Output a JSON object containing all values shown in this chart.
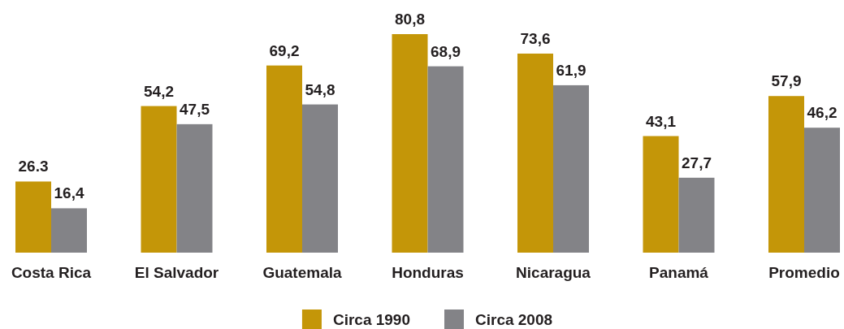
{
  "chart_data": {
    "type": "bar",
    "categories": [
      "Costa Rica",
      "El Salvador",
      "Guatemala",
      "Honduras",
      "Nicaragua",
      "Panamá",
      "Promedio"
    ],
    "series": [
      {
        "name": "Circa 1990",
        "color": "#c49608",
        "values": [
          26.3,
          54.2,
          69.2,
          80.8,
          73.6,
          43.1,
          57.9
        ],
        "value_labels": [
          "26.3",
          "54,2",
          "69,2",
          "80,8",
          "73,6",
          "43,1",
          "57,9"
        ]
      },
      {
        "name": "Circa 2008",
        "color": "#838387",
        "values": [
          16.4,
          47.5,
          54.8,
          68.9,
          61.9,
          27.7,
          46.2
        ],
        "value_labels": [
          "16,4",
          "47,5",
          "54,8",
          "68,9",
          "61,9",
          "27,7",
          "46,2"
        ]
      }
    ],
    "legend": "bottom"
  }
}
